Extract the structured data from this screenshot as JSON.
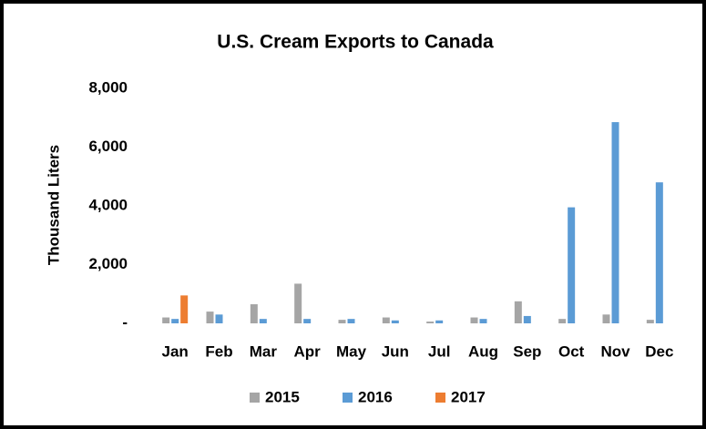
{
  "chart_data": {
    "type": "bar",
    "title": "U.S. Cream Exports to Canada",
    "y_label": "Thousand Liters",
    "categories": [
      "Jan",
      "Feb",
      "Mar",
      "Apr",
      "May",
      "Jun",
      "Jul",
      "Aug",
      "Sep",
      "Oct",
      "Nov",
      "Dec"
    ],
    "series": [
      {
        "name": "2015",
        "color": "#a5a5a5",
        "values": [
          200,
          400,
          650,
          1350,
          120,
          200,
          60,
          200,
          750,
          150,
          300,
          120
        ]
      },
      {
        "name": "2016",
        "color": "#5b9bd5",
        "values": [
          150,
          300,
          150,
          150,
          150,
          100,
          100,
          150,
          250,
          3950,
          6850,
          4800
        ]
      },
      {
        "name": "2017",
        "color": "#ed7d31",
        "values": [
          950,
          null,
          null,
          null,
          null,
          null,
          null,
          null,
          null,
          null,
          null,
          null
        ]
      }
    ],
    "ylim": [
      0,
      8000
    ],
    "yticks": [
      {
        "value": 0,
        "label": "-"
      },
      {
        "value": 2000,
        "label": "2,000"
      },
      {
        "value": 4000,
        "label": "4,000"
      },
      {
        "value": 6000,
        "label": "6,000"
      },
      {
        "value": 8000,
        "label": "8,000"
      }
    ],
    "legend": "bottom",
    "grid": false
  }
}
